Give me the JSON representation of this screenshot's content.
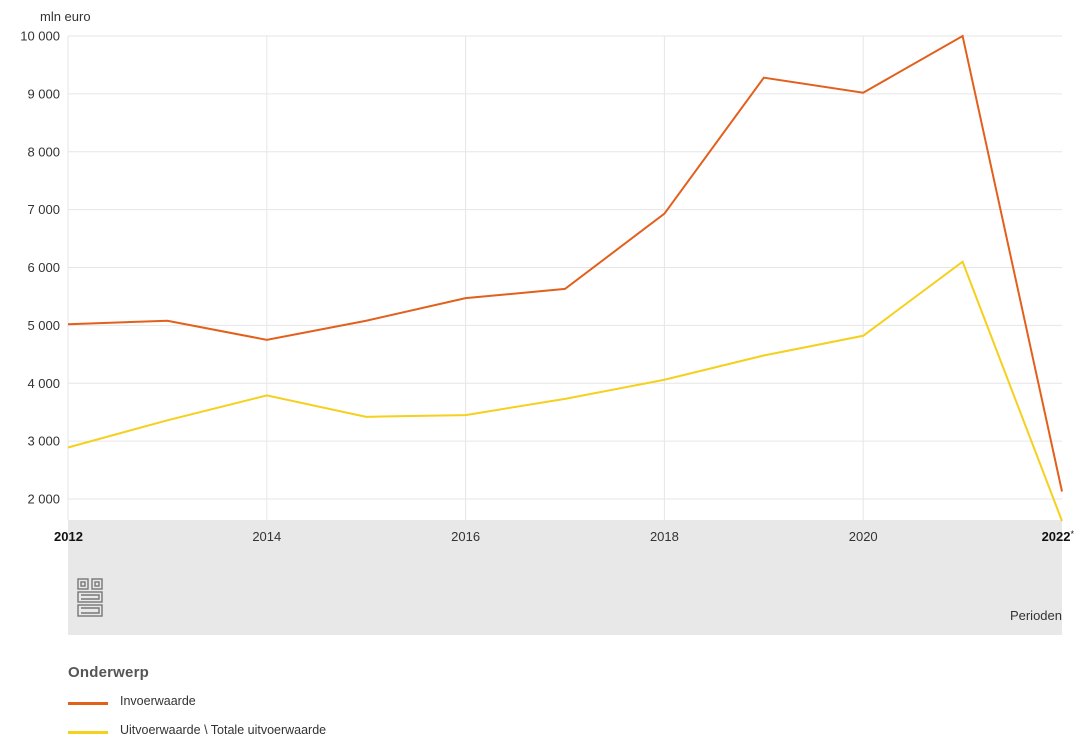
{
  "chart_data": {
    "type": "line",
    "unit_label": "mln euro",
    "xlabel": "Perioden",
    "x": [
      2012,
      2013,
      2014,
      2015,
      2016,
      2017,
      2018,
      2019,
      2020,
      2021,
      2022
    ],
    "x_ticks": [
      {
        "value": 2012,
        "label": "2012",
        "bold": true,
        "suffix": ""
      },
      {
        "value": 2014,
        "label": "2014",
        "bold": false,
        "suffix": ""
      },
      {
        "value": 2016,
        "label": "2016",
        "bold": false,
        "suffix": ""
      },
      {
        "value": 2018,
        "label": "2018",
        "bold": false,
        "suffix": ""
      },
      {
        "value": 2020,
        "label": "2020",
        "bold": false,
        "suffix": ""
      },
      {
        "value": 2022,
        "label": "2022",
        "bold": true,
        "suffix": "*"
      }
    ],
    "y_ticks": [
      {
        "value": 2000,
        "label": "2 000"
      },
      {
        "value": 3000,
        "label": "3 000"
      },
      {
        "value": 4000,
        "label": "4 000"
      },
      {
        "value": 5000,
        "label": "5 000"
      },
      {
        "value": 6000,
        "label": "6 000"
      },
      {
        "value": 7000,
        "label": "7 000"
      },
      {
        "value": 8000,
        "label": "8 000"
      },
      {
        "value": 9000,
        "label": "9 000"
      },
      {
        "value": 10000,
        "label": "10 000"
      }
    ],
    "xlim": [
      2012,
      2022
    ],
    "ylim": [
      1600,
      10000
    ],
    "grid": true,
    "series": [
      {
        "name": "Invoerwaarde",
        "color": "#e35f1c",
        "values": [
          5020,
          5080,
          4750,
          5080,
          5470,
          5630,
          6930,
          9280,
          9020,
          10000,
          2130
        ]
      },
      {
        "name": "Uitvoerwaarde \\ Totale uitvoerwaarde",
        "color": "#f5d01c",
        "values": [
          2890,
          3360,
          3790,
          3420,
          3450,
          3730,
          4060,
          4480,
          4820,
          6100,
          1620
        ]
      }
    ]
  },
  "legend": {
    "title": "Onderwerp",
    "items": [
      {
        "label": "Invoerwaarde",
        "color": "#e35f1c"
      },
      {
        "label": "Uitvoerwaarde \\ Totale uitvoerwaarde",
        "color": "#f5d01c"
      }
    ]
  },
  "logo": {
    "icon": "cbs-logo-icon"
  }
}
